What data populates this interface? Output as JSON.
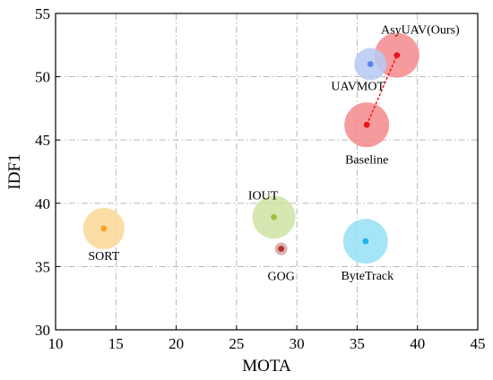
{
  "chart_data": {
    "type": "scatter",
    "title": "",
    "xlabel": "MOTA",
    "ylabel": "IDF1",
    "xlim": [
      10,
      45
    ],
    "ylim": [
      30,
      55
    ],
    "xticks": [
      "10",
      "15",
      "20",
      "25",
      "30",
      "35",
      "40",
      "45"
    ],
    "yticks": [
      "30",
      "35",
      "40",
      "45",
      "50",
      "55"
    ],
    "grid": true,
    "grid_style": "dash-dot",
    "points": [
      {
        "label": "AsyUAV(Ours)",
        "x": 38.3,
        "y": 51.7,
        "bubble_color": "#f58a8c",
        "dot_color": "#e8151b"
      },
      {
        "label": "UAVMOT",
        "x": 36.1,
        "y": 51.0,
        "bubble_color": "#b6c9f3",
        "dot_color": "#5d86e6"
      },
      {
        "label": "Baseline",
        "x": 35.8,
        "y": 46.2,
        "bubble_color": "#f58a8c",
        "dot_color": "#e8151b"
      },
      {
        "label": "IOUT",
        "x": 28.1,
        "y": 38.9,
        "bubble_color": "#cfe3a4",
        "dot_color": "#9ac23c"
      },
      {
        "label": "SORT",
        "x": 14.0,
        "y": 38.0,
        "bubble_color": "#fcd797",
        "dot_color": "#f7a420"
      },
      {
        "label": "GOG",
        "x": 28.7,
        "y": 36.4,
        "bubble_color": "#d9a3a3",
        "dot_color": "#b03535"
      },
      {
        "label": "ByteTrack",
        "x": 35.7,
        "y": 37.0,
        "bubble_color": "#97e0f7",
        "dot_color": "#22b4ef"
      }
    ],
    "connector": {
      "from": "Baseline",
      "to": "AsyUAV(Ours)",
      "color": "#e8151b",
      "style": "dashed"
    }
  }
}
